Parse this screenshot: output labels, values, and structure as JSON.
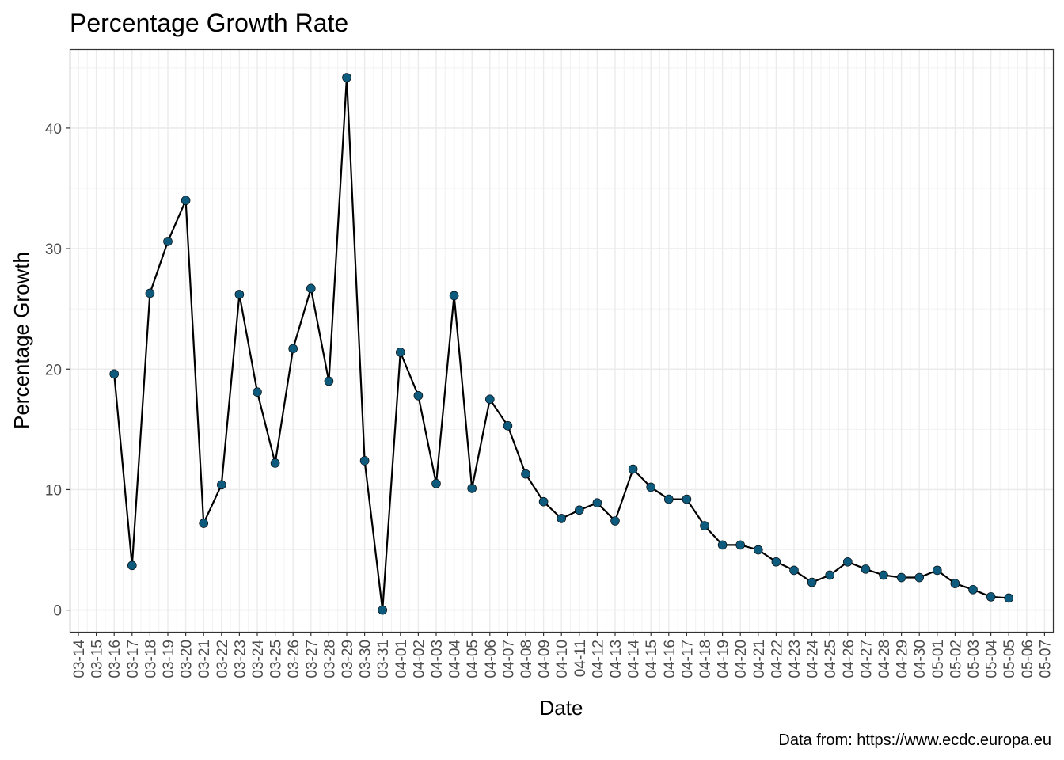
{
  "chart_data": {
    "type": "line",
    "title": "Percentage Growth Rate",
    "xlabel": "Date",
    "ylabel": "Percentage Growth",
    "caption": "Data from: https://www.ecdc.europa.eu",
    "x_ticks": [
      "03-14",
      "03-15",
      "03-16",
      "03-17",
      "03-18",
      "03-19",
      "03-20",
      "03-21",
      "03-22",
      "03-23",
      "03-24",
      "03-25",
      "03-26",
      "03-27",
      "03-28",
      "03-29",
      "03-30",
      "03-31",
      "04-01",
      "04-02",
      "04-03",
      "04-04",
      "04-05",
      "04-06",
      "04-07",
      "04-08",
      "04-09",
      "04-10",
      "04-11",
      "04-12",
      "04-13",
      "04-14",
      "04-15",
      "04-16",
      "04-17",
      "04-18",
      "04-19",
      "04-20",
      "04-21",
      "04-22",
      "04-23",
      "04-24",
      "04-25",
      "04-26",
      "04-27",
      "04-28",
      "04-29",
      "04-30",
      "05-01",
      "05-02",
      "05-03",
      "05-04",
      "05-05",
      "05-06",
      "05-07"
    ],
    "xlim": [
      "03-14",
      "05-07"
    ],
    "y_ticks": [
      0,
      10,
      20,
      30,
      40
    ],
    "ylim": [
      -1.8,
      46.5
    ],
    "grid": true,
    "series": [
      {
        "x": [
          "03-16",
          "03-17",
          "03-18",
          "03-19",
          "03-20",
          "03-21",
          "03-22",
          "03-23",
          "03-24",
          "03-25",
          "03-26",
          "03-27",
          "03-28",
          "03-29",
          "03-30",
          "03-31",
          "04-01",
          "04-02",
          "04-03",
          "04-04",
          "04-05",
          "04-06",
          "04-07",
          "04-08",
          "04-09",
          "04-10",
          "04-11",
          "04-12",
          "04-13",
          "04-14",
          "04-15",
          "04-16",
          "04-17",
          "04-18",
          "04-19",
          "04-20",
          "04-21",
          "04-22",
          "04-23",
          "04-24",
          "04-25",
          "04-26",
          "04-27",
          "04-28",
          "04-29",
          "04-30",
          "05-01",
          "05-02",
          "05-03",
          "05-04",
          "05-05"
        ],
        "values": [
          19.6,
          3.7,
          26.3,
          30.6,
          34.0,
          7.2,
          10.4,
          26.2,
          18.1,
          12.2,
          21.7,
          26.7,
          19.0,
          44.2,
          12.4,
          0.0,
          21.4,
          17.8,
          10.5,
          26.1,
          10.1,
          17.5,
          15.3,
          11.3,
          9.0,
          7.6,
          8.3,
          8.9,
          7.4,
          11.7,
          10.2,
          9.2,
          9.2,
          7.0,
          5.4,
          5.4,
          5.0,
          4.0,
          3.3,
          2.3,
          2.9,
          4.0,
          3.4,
          2.9,
          2.7,
          2.7,
          3.3,
          2.2,
          1.7,
          1.1,
          1.0
        ]
      }
    ],
    "colors": {
      "line": "#000000",
      "point": "#0e5a7d",
      "grid_major": "#ebebeb",
      "grid_minor": "#f2f2f2",
      "panel_border": "#333333",
      "tick_text": "#4d4d4d"
    }
  }
}
